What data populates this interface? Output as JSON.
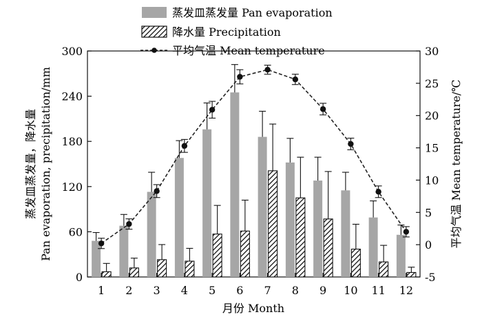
{
  "chart_data": {
    "type": "bar+line",
    "categories": [
      "1",
      "2",
      "3",
      "4",
      "5",
      "6",
      "7",
      "8",
      "9",
      "10",
      "11",
      "12"
    ],
    "series": [
      {
        "name": "蒸发皿蒸发量 Pan evaporation",
        "kind": "bar",
        "axis": "left",
        "color": "#a6a6a6",
        "values": [
          48,
          68,
          113,
          158,
          196,
          245,
          186,
          152,
          128,
          115,
          79,
          56
        ],
        "errors": [
          11,
          15,
          26,
          23,
          35,
          37,
          34,
          32,
          31,
          24,
          22,
          13
        ]
      },
      {
        "name": "降水量 Precipitation",
        "kind": "bar",
        "axis": "left",
        "pattern": "hatched",
        "values": [
          7,
          12,
          23,
          21,
          57,
          61,
          141,
          105,
          77,
          37,
          20,
          6
        ],
        "errors": [
          11,
          13,
          20,
          17,
          38,
          41,
          62,
          54,
          63,
          33,
          22,
          7
        ]
      },
      {
        "name": "平均气温 Mean temperature",
        "kind": "line",
        "axis": "right",
        "style": "dashed-with-dots",
        "values": [
          0.2,
          3.2,
          8.3,
          15.3,
          20.9,
          26.0,
          27.1,
          25.6,
          21.0,
          15.6,
          8.2,
          2.0
        ],
        "errors": [
          0.8,
          0.8,
          1.0,
          1.0,
          1.3,
          1.1,
          0.7,
          0.8,
          0.9,
          0.9,
          0.9,
          0.8
        ]
      }
    ],
    "xlabel": "月份 Month",
    "ylabel_left": [
      "蒸发皿蒸发量，降水量",
      "Pan evaporation, precipitation/mm"
    ],
    "ylabel_right": "平均气温 Mean temperature/℃",
    "ylim_left": [
      0,
      300
    ],
    "yticks_left": [
      0,
      60,
      120,
      180,
      240,
      300
    ],
    "ylim_right": [
      -5,
      30
    ],
    "yticks_right": [
      -5,
      0,
      5,
      10,
      15,
      20,
      25,
      30
    ],
    "legend": [
      {
        "label": "蒸发皿蒸发量 Pan evaporation",
        "key": "evap"
      },
      {
        "label": "降水量 Precipitation",
        "key": "precip"
      },
      {
        "label": "平均气温 Mean temperature",
        "key": "temp"
      }
    ],
    "legend_position": "top",
    "grid": false
  }
}
